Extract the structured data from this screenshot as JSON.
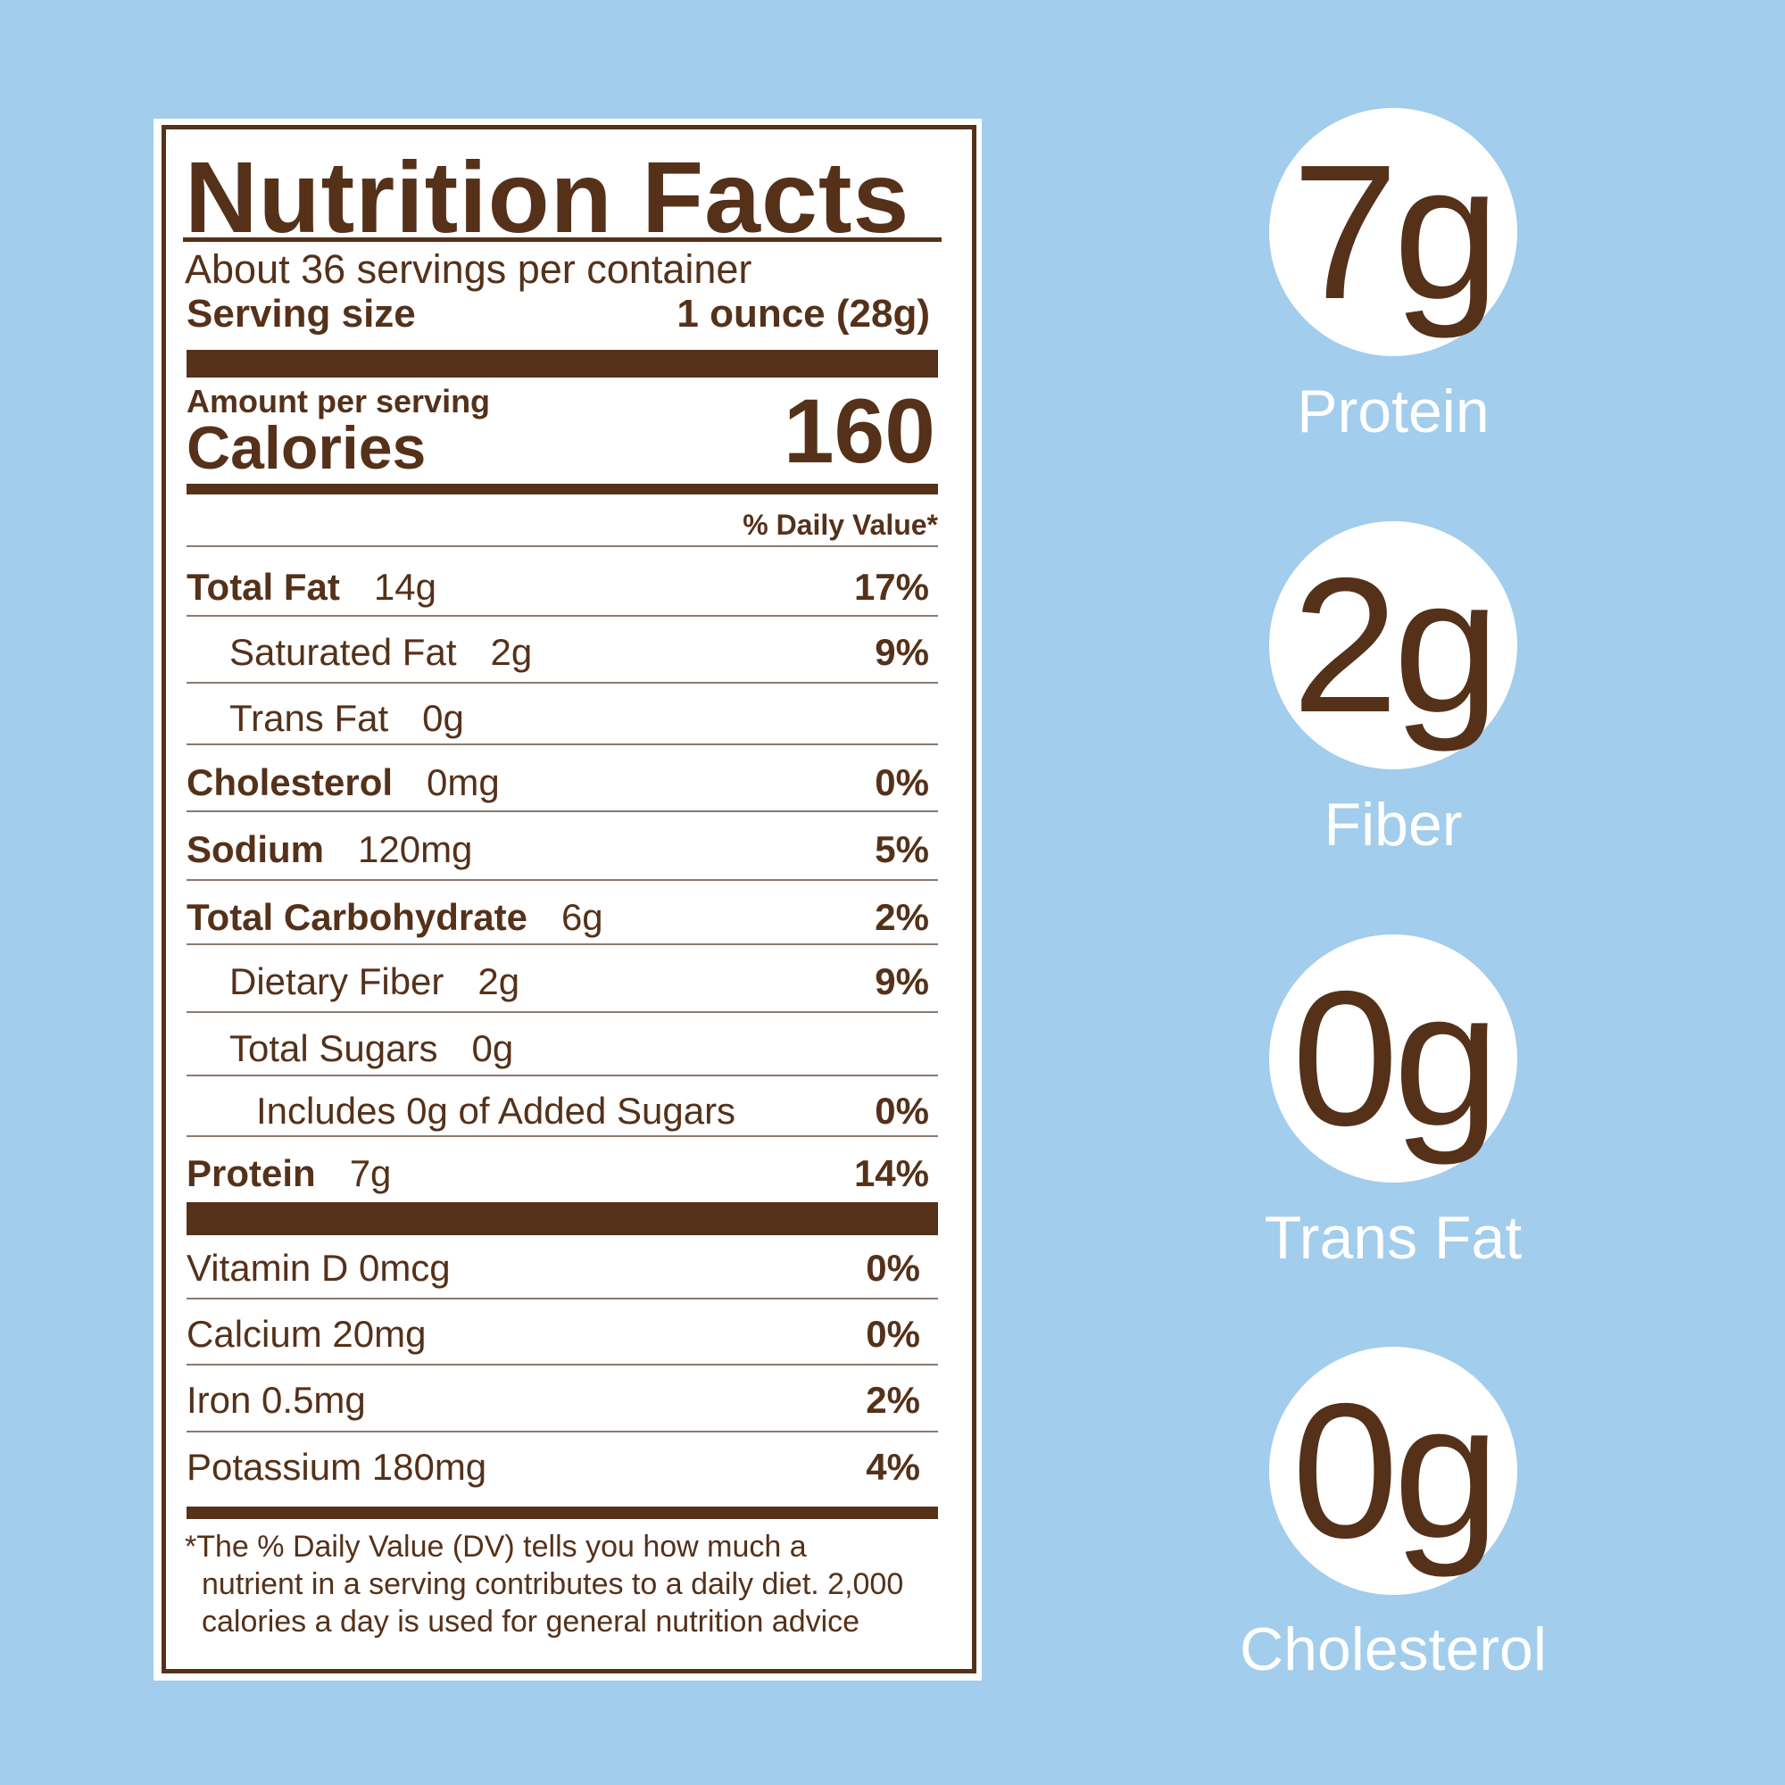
{
  "label": {
    "title": "Nutrition Facts",
    "servings_per_container": "About 36 servings per container",
    "serving_size_label": "Serving size",
    "serving_size_value": "1 ounce (28g)",
    "amount_per_serving": "Amount per serving",
    "calories_label": "Calories",
    "calories_value": "160",
    "daily_value_header": "% Daily Value*",
    "nutrients": [
      {
        "name": "Total Fat",
        "amount": "14g",
        "dv": "17%"
      },
      {
        "name": "Saturated Fat",
        "amount": "2g",
        "dv": "9%"
      },
      {
        "name": "Trans Fat",
        "amount": "0g",
        "dv": ""
      },
      {
        "name": "Cholesterol",
        "amount": "0mg",
        "dv": "0%"
      },
      {
        "name": "Sodium",
        "amount": "120mg",
        "dv": "5%"
      },
      {
        "name": "Total Carbohydrate",
        "amount": "6g",
        "dv": "2%"
      },
      {
        "name": "Dietary Fiber",
        "amount": "2g",
        "dv": "9%"
      },
      {
        "name": "Total Sugars",
        "amount": "0g",
        "dv": ""
      },
      {
        "name": "Includes 0g of Added Sugars",
        "amount": "",
        "dv": "0%"
      },
      {
        "name": "Protein",
        "amount": "7g",
        "dv": "14%"
      }
    ],
    "vitamins": [
      {
        "name": "Vitamin D 0mcg",
        "dv": "0%"
      },
      {
        "name": "Calcium 20mg",
        "dv": "0%"
      },
      {
        "name": "Iron 0.5mg",
        "dv": "2%"
      },
      {
        "name": "Potassium 180mg",
        "dv": "4%"
      }
    ],
    "footnote": [
      "*The % Daily Value (DV) tells you how much a",
      "nutrient in a serving contributes to a daily diet. 2,000",
      "calories a day is used for general nutrition advice"
    ]
  },
  "highlights": [
    {
      "value": "7g",
      "label": "Protein"
    },
    {
      "value": "2g",
      "label": "Fiber"
    },
    {
      "value": "0g",
      "label": "Trans Fat"
    },
    {
      "value": "0g",
      "label": "Cholesterol"
    }
  ],
  "colors": {
    "background": "#a2cdec",
    "brown": "#55311a",
    "white": "#ffffff"
  }
}
